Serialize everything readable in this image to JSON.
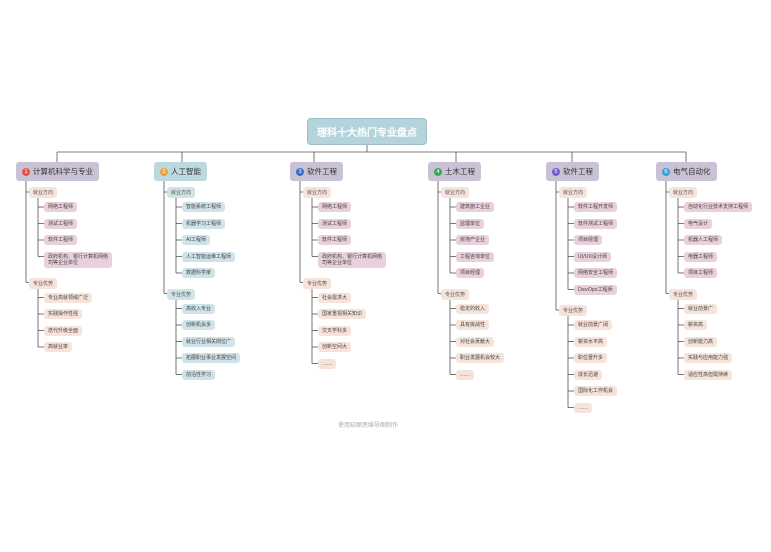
{
  "title": "理科十大热门专业盘点",
  "footer": "使用知犀思维导图制作",
  "colors": {
    "line": "#555555",
    "root_bg": "#b5d3db",
    "branch_purple": "#c9c1d6",
    "branch_teal": "#bcd9e0",
    "leaf_pink": "#ead0dc",
    "leaf_teal": "#cfe3e8",
    "leaf_peach": "#f6e3da"
  },
  "branches": [
    {
      "num": "1",
      "numColor": "#e8534a",
      "label": "计算机科学与专业",
      "sections": [
        {
          "label": "就业方向",
          "items": [
            "网络工程师",
            "测试工程师",
            "软件工程师",
            "政府机构、银行计算机网络\n司等企业单位"
          ]
        },
        {
          "label": "专业优势",
          "items": [
            "专业高就领域广泛",
            "实践操作性强",
            "迭代升级全面",
            "高就业率"
          ]
        }
      ]
    },
    {
      "num": "2",
      "numColor": "#f0a030",
      "label": "人工智能",
      "sections": [
        {
          "label": "就业方向",
          "items": [
            "智能系统工程师",
            "机器学习工程师",
            "AI工程师",
            "人工智能运维工程师",
            "数据科学家"
          ]
        },
        {
          "label": "专业优势",
          "items": [
            "高收入专业",
            "创新机会多",
            "就业行业相关岗位广",
            "拓展职业事业发展空间",
            "前沿性学习"
          ]
        }
      ]
    },
    {
      "num": "3",
      "numColor": "#3a6fd0",
      "label": "软件工程",
      "sections": [
        {
          "label": "就业方向",
          "items": [
            "网络工程师",
            "测试工程师",
            "软件工程师",
            "政府机构、银行计算机网络\n司等企业单位"
          ]
        },
        {
          "label": "专业优势",
          "items": [
            "社会需求大",
            "国家重视相关知识",
            "交叉学科多",
            "创新空间大",
            "……"
          ]
        }
      ]
    },
    {
      "num": "4",
      "numColor": "#3aa85a",
      "label": "土木工程",
      "sections": [
        {
          "label": "就业方向",
          "items": [
            "建筑施工企业",
            "监理单位",
            "房地产企业",
            "工程咨询单位",
            "项目经理"
          ]
        },
        {
          "label": "专业优势",
          "items": [
            "稳定的收入",
            "具有挑战性",
            "对社会贡献大",
            "职业发展机会较大",
            "……"
          ]
        }
      ]
    },
    {
      "num": "5",
      "numColor": "#7a5ad0",
      "label": "软件工程",
      "sections": [
        {
          "label": "就业方向",
          "items": [
            "软件工程开发师",
            "软件测试工程师",
            "项目经理",
            "UI/UX设计师",
            "网络安全工程师",
            "DevOps工程师"
          ]
        },
        {
          "label": "专业优势",
          "items": [
            "就业前景广阔",
            "薪资水平高",
            "职位晋升多",
            "成长迅速",
            "国际化工作机会",
            "……"
          ]
        }
      ]
    },
    {
      "num": "6",
      "numColor": "#3aa0d8",
      "label": "电气自动化",
      "sections": [
        {
          "label": "就业方向",
          "items": [
            "自动化行业技术支持工程师",
            "电气设计",
            "机器人工程师",
            "电器工程师",
            "项目工程师"
          ]
        },
        {
          "label": "专业优势",
          "items": [
            "就业前景广",
            "薪资高",
            "创新能力高",
            "实践与应用能力强",
            "适应性高但需持续"
          ]
        }
      ]
    }
  ]
}
